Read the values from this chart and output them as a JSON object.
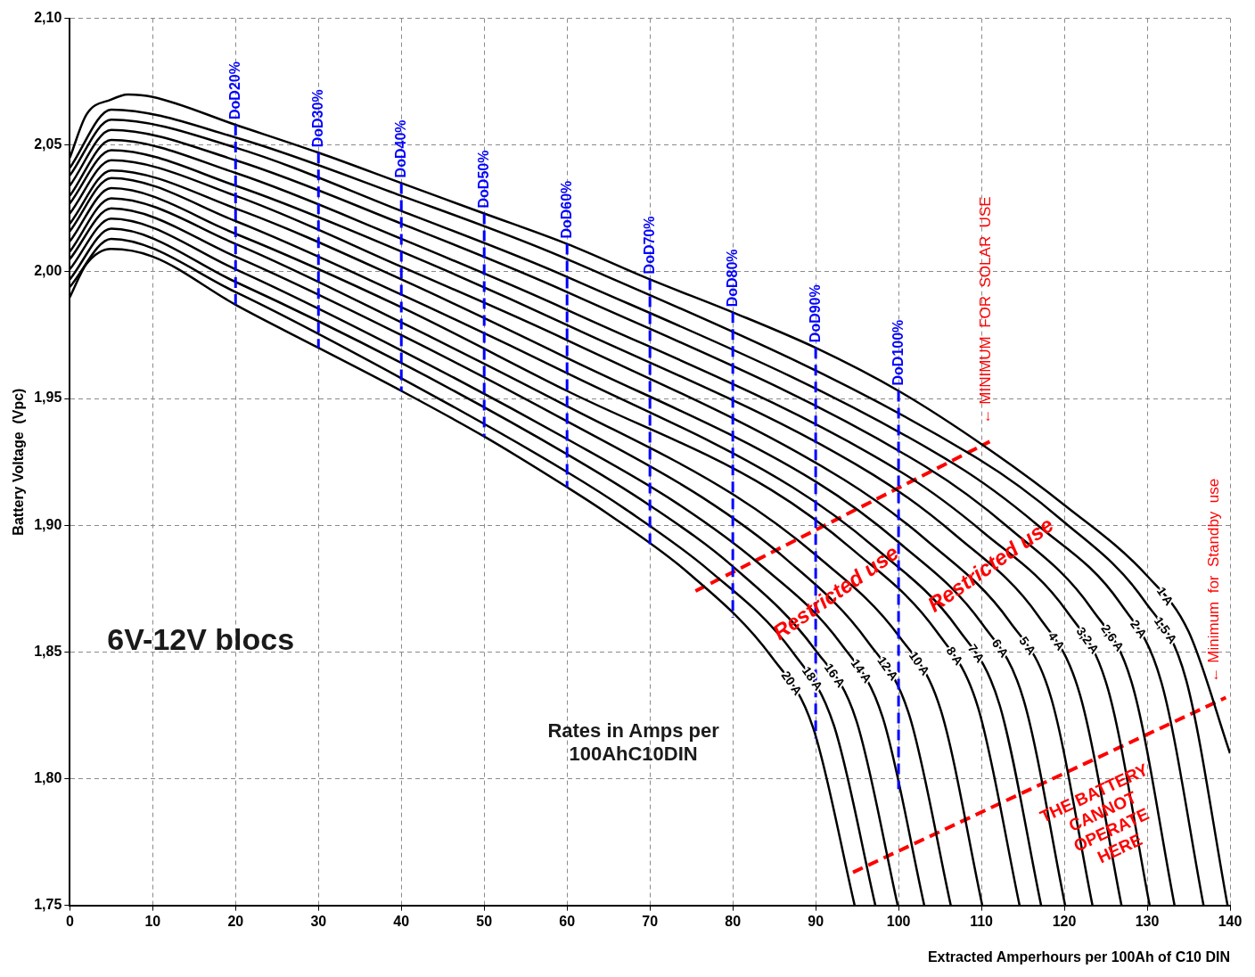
{
  "chart_data": {
    "type": "line",
    "xlabel": "Extracted Amperhours per 100Ah of C10 DIN",
    "ylabel": "Battery Voltage  (Vpc)",
    "xlim": [
      0,
      140
    ],
    "xticks": [
      0,
      10,
      20,
      30,
      40,
      50,
      60,
      70,
      80,
      90,
      100,
      110,
      120,
      130,
      140
    ],
    "ylim": [
      1.75,
      2.1
    ],
    "yticks": [
      {
        "value": 1.75,
        "label": "1,75"
      },
      {
        "value": 1.8,
        "label": "1,80"
      },
      {
        "value": 1.85,
        "label": "1,85"
      },
      {
        "value": 1.9,
        "label": "1,90"
      },
      {
        "value": 1.95,
        "label": "1,95"
      },
      {
        "value": 2.0,
        "label": "2,00"
      },
      {
        "value": 2.05,
        "label": "2,05"
      },
      {
        "value": 2.1,
        "label": "2,10"
      }
    ],
    "grid": true,
    "legend": false,
    "series": [
      {
        "name": "1 A",
        "color": "#000000",
        "x": [
          0,
          2,
          5,
          7,
          10,
          20,
          30,
          40,
          50,
          60,
          70,
          80,
          90,
          100,
          110,
          120,
          130,
          135,
          140
        ],
        "values": [
          2.045,
          2.062,
          2.068,
          2.07,
          2.069,
          2.058,
          2.047,
          2.035,
          2.023,
          2.011,
          1.997,
          1.984,
          1.97,
          1.953,
          1.932,
          1.908,
          1.88,
          1.858,
          1.81
        ]
      },
      {
        "name": "1,5 A",
        "color": "#000000",
        "x": [
          0,
          5,
          20,
          40,
          60,
          109.7,
          119.7,
          129.7,
          134.7,
          139.7
        ],
        "values": [
          2.041,
          2.064,
          2.053,
          2.03,
          2.005,
          1.926,
          1.902,
          1.87,
          1.839,
          1.75
        ]
      },
      {
        "name": "2 A",
        "color": "#000000",
        "x": [
          0,
          5,
          20,
          40,
          60,
          106.8,
          116.8,
          126.8,
          131.8,
          136.8
        ],
        "values": [
          2.038,
          2.06,
          2.049,
          2.024,
          1.998,
          1.924,
          1.9,
          1.869,
          1.837,
          1.75
        ]
      },
      {
        "name": "2,6 A",
        "color": "#000000",
        "x": [
          0,
          5,
          20,
          40,
          60,
          103.3,
          113.3,
          123.3,
          128.3,
          133.3
        ],
        "values": [
          2.034,
          2.056,
          2.044,
          2.019,
          1.992,
          1.923,
          1.899,
          1.867,
          1.836,
          1.75
        ]
      },
      {
        "name": "3,2 A",
        "color": "#000000",
        "x": [
          0,
          5,
          20,
          40,
          60,
          100.3,
          110.3,
          120.3,
          125.3,
          130.3
        ],
        "values": [
          2.03,
          2.052,
          2.039,
          2.013,
          1.985,
          1.921,
          1.897,
          1.866,
          1.835,
          1.75
        ]
      },
      {
        "name": "4 A",
        "color": "#000000",
        "x": [
          0,
          5,
          20,
          40,
          60,
          96.9,
          106.9,
          116.9,
          121.9,
          126.9
        ],
        "values": [
          2.027,
          2.048,
          2.034,
          2.008,
          1.979,
          1.92,
          1.896,
          1.864,
          1.833,
          1.75
        ]
      },
      {
        "name": "5 A",
        "color": "#000000",
        "x": [
          0,
          5,
          20,
          40,
          60,
          93.4,
          103.4,
          113.4,
          118.4,
          123.4
        ],
        "values": [
          2.023,
          2.044,
          2.03,
          2.002,
          1.973,
          1.918,
          1.894,
          1.862,
          1.832,
          1.75
        ]
      },
      {
        "name": "6 A",
        "color": "#000000",
        "x": [
          0,
          5,
          20,
          40,
          60,
          90.1,
          100.1,
          110.1,
          115.1,
          120.1
        ],
        "values": [
          2.019,
          2.04,
          2.025,
          1.997,
          1.966,
          1.917,
          1.893,
          1.861,
          1.831,
          1.75
        ]
      },
      {
        "name": "7 A",
        "color": "#000000",
        "x": [
          0,
          5,
          20,
          40,
          60,
          87.2,
          97.2,
          107.2,
          112.2,
          117.2
        ],
        "values": [
          2.016,
          2.037,
          2.02,
          1.991,
          1.96,
          1.915,
          1.891,
          1.859,
          1.829,
          1.75
        ]
      },
      {
        "name": "8 A",
        "color": "#000000",
        "x": [
          0,
          5,
          20,
          40,
          60,
          84.6,
          94.6,
          104.6,
          109.6,
          114.6
        ],
        "values": [
          2.012,
          2.033,
          2.015,
          1.986,
          1.953,
          1.914,
          1.89,
          1.858,
          1.828,
          1.75
        ]
      },
      {
        "name": "10 A",
        "color": "#000000",
        "x": [
          0,
          5,
          20,
          40,
          60,
          80.1,
          90.1,
          100.1,
          105.1,
          110.1
        ],
        "values": [
          2.008,
          2.029,
          2.011,
          1.98,
          1.947,
          1.912,
          1.888,
          1.856,
          1.827,
          1.75
        ]
      },
      {
        "name": "12 A",
        "color": "#000000",
        "x": [
          0,
          5,
          20,
          40,
          60,
          76.3,
          86.3,
          96.3,
          101.3,
          106.3
        ],
        "values": [
          2.005,
          2.025,
          2.006,
          1.975,
          1.941,
          1.911,
          1.887,
          1.854,
          1.825,
          1.75
        ]
      },
      {
        "name": "14 A",
        "color": "#000000",
        "x": [
          0,
          5,
          20,
          40,
          60,
          73.1,
          83.1,
          93.1,
          98.1,
          103.1
        ],
        "values": [
          2.001,
          2.021,
          2.001,
          1.969,
          1.934,
          1.909,
          1.885,
          1.853,
          1.824,
          1.75
        ]
      },
      {
        "name": "16 A",
        "color": "#000000",
        "x": [
          0,
          5,
          20,
          40,
          60,
          69.9,
          79.9,
          89.9,
          94.9,
          99.9
        ],
        "values": [
          1.997,
          2.017,
          1.996,
          1.964,
          1.928,
          1.908,
          1.884,
          1.851,
          1.823,
          1.75
        ]
      },
      {
        "name": "18 A",
        "color": "#000000",
        "x": [
          0,
          5,
          20,
          40,
          60,
          67.2,
          77.2,
          87.2,
          92.2,
          97.2
        ],
        "values": [
          1.994,
          2.013,
          1.992,
          1.958,
          1.921,
          1.906,
          1.882,
          1.85,
          1.821,
          1.75
        ]
      },
      {
        "name": "20 A",
        "color": "#000000",
        "x": [
          0,
          2,
          5,
          10,
          20,
          30,
          40,
          50,
          60,
          64.7,
          74.7,
          84.7,
          89.7,
          94.7
        ],
        "values": [
          1.99,
          2.003,
          2.009,
          2.006,
          1.987,
          1.97,
          1.953,
          1.935,
          1.915,
          1.905,
          1.881,
          1.848,
          1.82,
          1.75
        ]
      },
      {
        "type": "line",
        "color": "#ff0000",
        "line_style": "dashed",
        "x": [
          75.5,
          111
        ],
        "values": [
          1.874,
          1.933
        ]
      },
      {
        "type": "line",
        "color": "#ff0000",
        "line_style": "dashed",
        "x": [
          94.5,
          139.5
        ],
        "values": [
          1.763,
          1.832
        ]
      }
    ],
    "ref_lines": [
      {
        "axis": "x",
        "value": 20,
        "label": "DoD20%",
        "color": "#0000ff",
        "line_style": "dashed"
      },
      {
        "axis": "x",
        "value": 30,
        "label": "DoD30%",
        "color": "#0000ff",
        "line_style": "dashed"
      },
      {
        "axis": "x",
        "value": 40,
        "label": "DoD40%",
        "color": "#0000ff",
        "line_style": "dashed"
      },
      {
        "axis": "x",
        "value": 50,
        "label": "DoD50%",
        "color": "#0000ff",
        "line_style": "dashed"
      },
      {
        "axis": "x",
        "value": 60,
        "label": "DoD60%",
        "color": "#0000ff",
        "line_style": "dashed"
      },
      {
        "axis": "x",
        "value": 70,
        "label": "DoD70%",
        "color": "#0000ff",
        "line_style": "dashed"
      },
      {
        "axis": "x",
        "value": 80,
        "label": "DoD80%",
        "color": "#0000ff",
        "line_style": "dashed"
      },
      {
        "axis": "x",
        "value": 90,
        "label": "DoD90%",
        "color": "#0000ff",
        "line_style": "dashed"
      },
      {
        "axis": "x",
        "value": 100,
        "label": "DoD100%",
        "color": "#0000ff",
        "line_style": "dashed"
      }
    ],
    "annotations": [
      "6V-12V blocs",
      "Rates in Amps per 100AhC10DIN",
      "Restricted use",
      "Restricted use",
      "THE BATTERY CANNOT OPERATE HERE",
      "← MINIMUM  FOR  SOLAR  USE",
      "← Minimum  for  Standby  use"
    ]
  }
}
